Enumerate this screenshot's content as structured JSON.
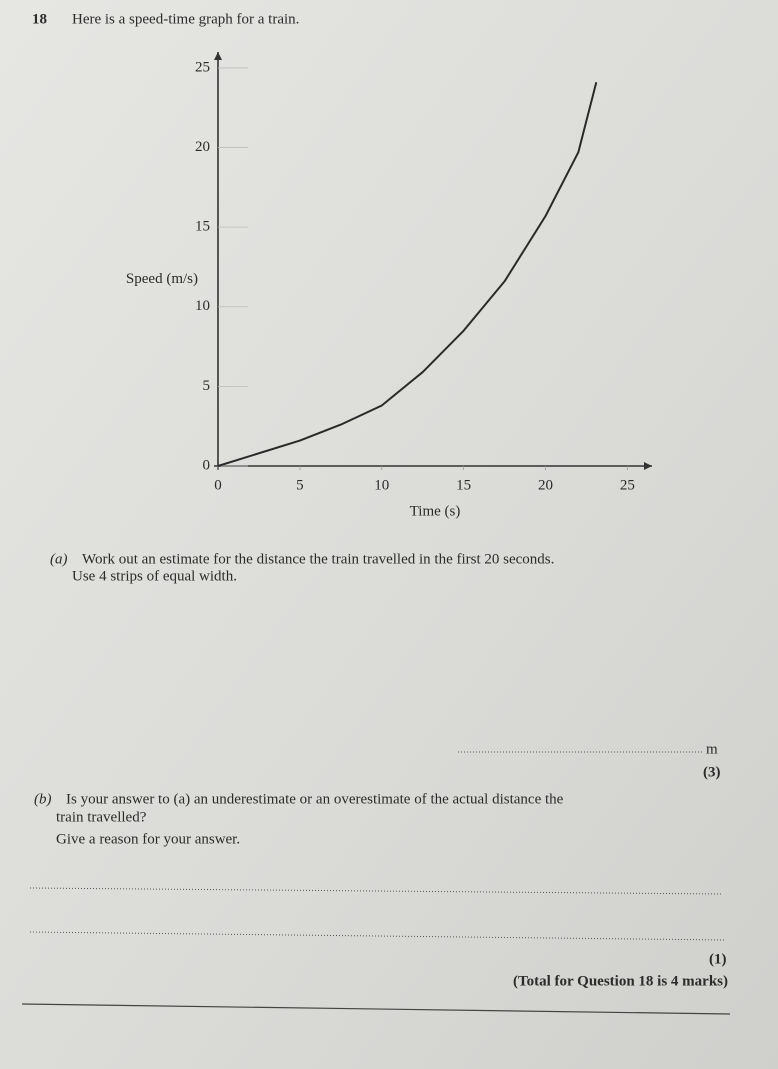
{
  "question": {
    "number": "18",
    "intro": "Here is a speed-time graph for a train."
  },
  "chart_data": {
    "type": "line",
    "xlabel": "Time (s)",
    "ylabel": "Speed (m/s)",
    "x": [
      0,
      2.5,
      5,
      7.5,
      10,
      12.5,
      15,
      17.5,
      20,
      22,
      23.1
    ],
    "series": [
      {
        "color": "#2a2a2a",
        "values": [
          0,
          0.8,
          1.6,
          2.6,
          3.8,
          5.9,
          8.5,
          11.6,
          15.7,
          19.7,
          24.1
        ]
      }
    ],
    "xlim": [
      0,
      26.5
    ],
    "ylim": [
      0,
      26
    ],
    "xticks": [
      0,
      5,
      10,
      15,
      20,
      25
    ],
    "yticks": [
      0,
      5,
      10,
      15,
      20,
      25
    ],
    "grid": false
  },
  "part_a": {
    "label": "(a)",
    "lines": [
      "Work out an estimate for the distance the train travelled in the first 20 seconds.",
      "Use 4 strips of equal width."
    ],
    "unit": "m",
    "marks": "(3)"
  },
  "part_b": {
    "label": "(b)",
    "lines": [
      "Is your answer to (a) an underestimate or an overestimate of the actual distance the",
      "train travelled?",
      "Give a reason for your answer."
    ],
    "marks": "(1)"
  },
  "total": "(Total for Question 18 is 4 marks)"
}
